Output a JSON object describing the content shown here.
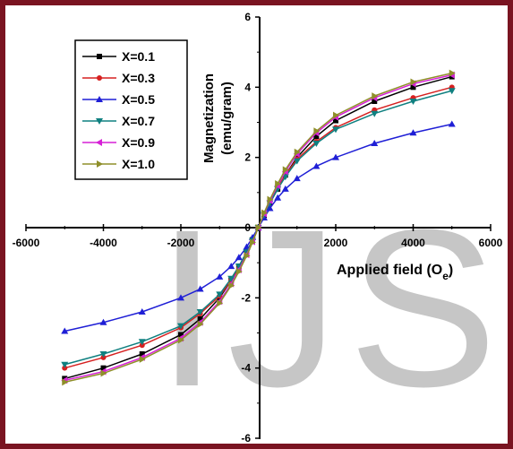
{
  "chart_data": {
    "type": "line",
    "xlabel": "Applied field (O",
    "xlabel_sub": "e",
    "xlabel_close": ")",
    "ylabel_line1": "Magnetization",
    "ylabel_line2": "(emu/gram)",
    "xlim": [
      -6000,
      6000
    ],
    "ylim": [
      -6,
      6
    ],
    "x_ticks": [
      -6000,
      -4000,
      -2000,
      0,
      2000,
      4000,
      6000
    ],
    "y_ticks": [
      -6,
      -4,
      -2,
      0,
      2,
      4,
      6
    ],
    "x_tick_labels": [
      "-6000",
      "-4000",
      "-2000",
      "0",
      "2000",
      "4000",
      "6000"
    ],
    "y_tick_labels": [
      "-6",
      "-4",
      "-2",
      "0",
      "2",
      "4",
      "6"
    ],
    "grid": false,
    "legend_position": "top-left",
    "watermark": "IJS",
    "x": [
      -5000,
      -4000,
      -3000,
      -2000,
      -1500,
      -1000,
      -700,
      -500,
      -300,
      -150,
      0,
      150,
      300,
      500,
      700,
      1000,
      1500,
      2000,
      3000,
      4000,
      5000
    ],
    "series": [
      {
        "name": "X=0.1",
        "color": "#000000",
        "marker": "square",
        "values": [
          -4.3,
          -4.0,
          -3.6,
          -3.05,
          -2.6,
          -2.0,
          -1.5,
          -1.1,
          -0.7,
          -0.35,
          0,
          0.35,
          0.7,
          1.1,
          1.5,
          2.0,
          2.6,
          3.05,
          3.6,
          4.0,
          4.3
        ]
      },
      {
        "name": "X=0.3",
        "color": "#d62020",
        "marker": "circle",
        "values": [
          -4.0,
          -3.7,
          -3.35,
          -2.85,
          -2.45,
          -1.95,
          -1.5,
          -1.15,
          -0.75,
          -0.4,
          0,
          0.4,
          0.75,
          1.15,
          1.5,
          1.95,
          2.45,
          2.85,
          3.35,
          3.7,
          4.0
        ]
      },
      {
        "name": "X=0.5",
        "color": "#1f1fd6",
        "marker": "triangle-up",
        "values": [
          -2.95,
          -2.7,
          -2.4,
          -2.0,
          -1.75,
          -1.4,
          -1.1,
          -0.85,
          -0.55,
          -0.28,
          0,
          0.28,
          0.55,
          0.85,
          1.1,
          1.4,
          1.75,
          2.0,
          2.4,
          2.7,
          2.95
        ]
      },
      {
        "name": "X=0.7",
        "color": "#0f8080",
        "marker": "triangle-down",
        "values": [
          -3.9,
          -3.6,
          -3.25,
          -2.8,
          -2.4,
          -1.9,
          -1.45,
          -1.1,
          -0.7,
          -0.37,
          0,
          0.37,
          0.7,
          1.1,
          1.45,
          1.9,
          2.4,
          2.8,
          3.25,
          3.6,
          3.9
        ]
      },
      {
        "name": "X=0.9",
        "color": "#d620d6",
        "marker": "triangle-left",
        "values": [
          -4.35,
          -4.1,
          -3.7,
          -3.15,
          -2.7,
          -2.1,
          -1.6,
          -1.2,
          -0.77,
          -0.4,
          0,
          0.4,
          0.77,
          1.2,
          1.6,
          2.1,
          2.7,
          3.15,
          3.7,
          4.1,
          4.35
        ]
      },
      {
        "name": "X=1.0",
        "color": "#8f8f2a",
        "marker": "triangle-right",
        "values": [
          -4.4,
          -4.15,
          -3.75,
          -3.2,
          -2.75,
          -2.15,
          -1.65,
          -1.25,
          -0.8,
          -0.42,
          0,
          0.42,
          0.8,
          1.25,
          1.65,
          2.15,
          2.75,
          3.2,
          3.75,
          4.15,
          4.4
        ]
      }
    ]
  }
}
